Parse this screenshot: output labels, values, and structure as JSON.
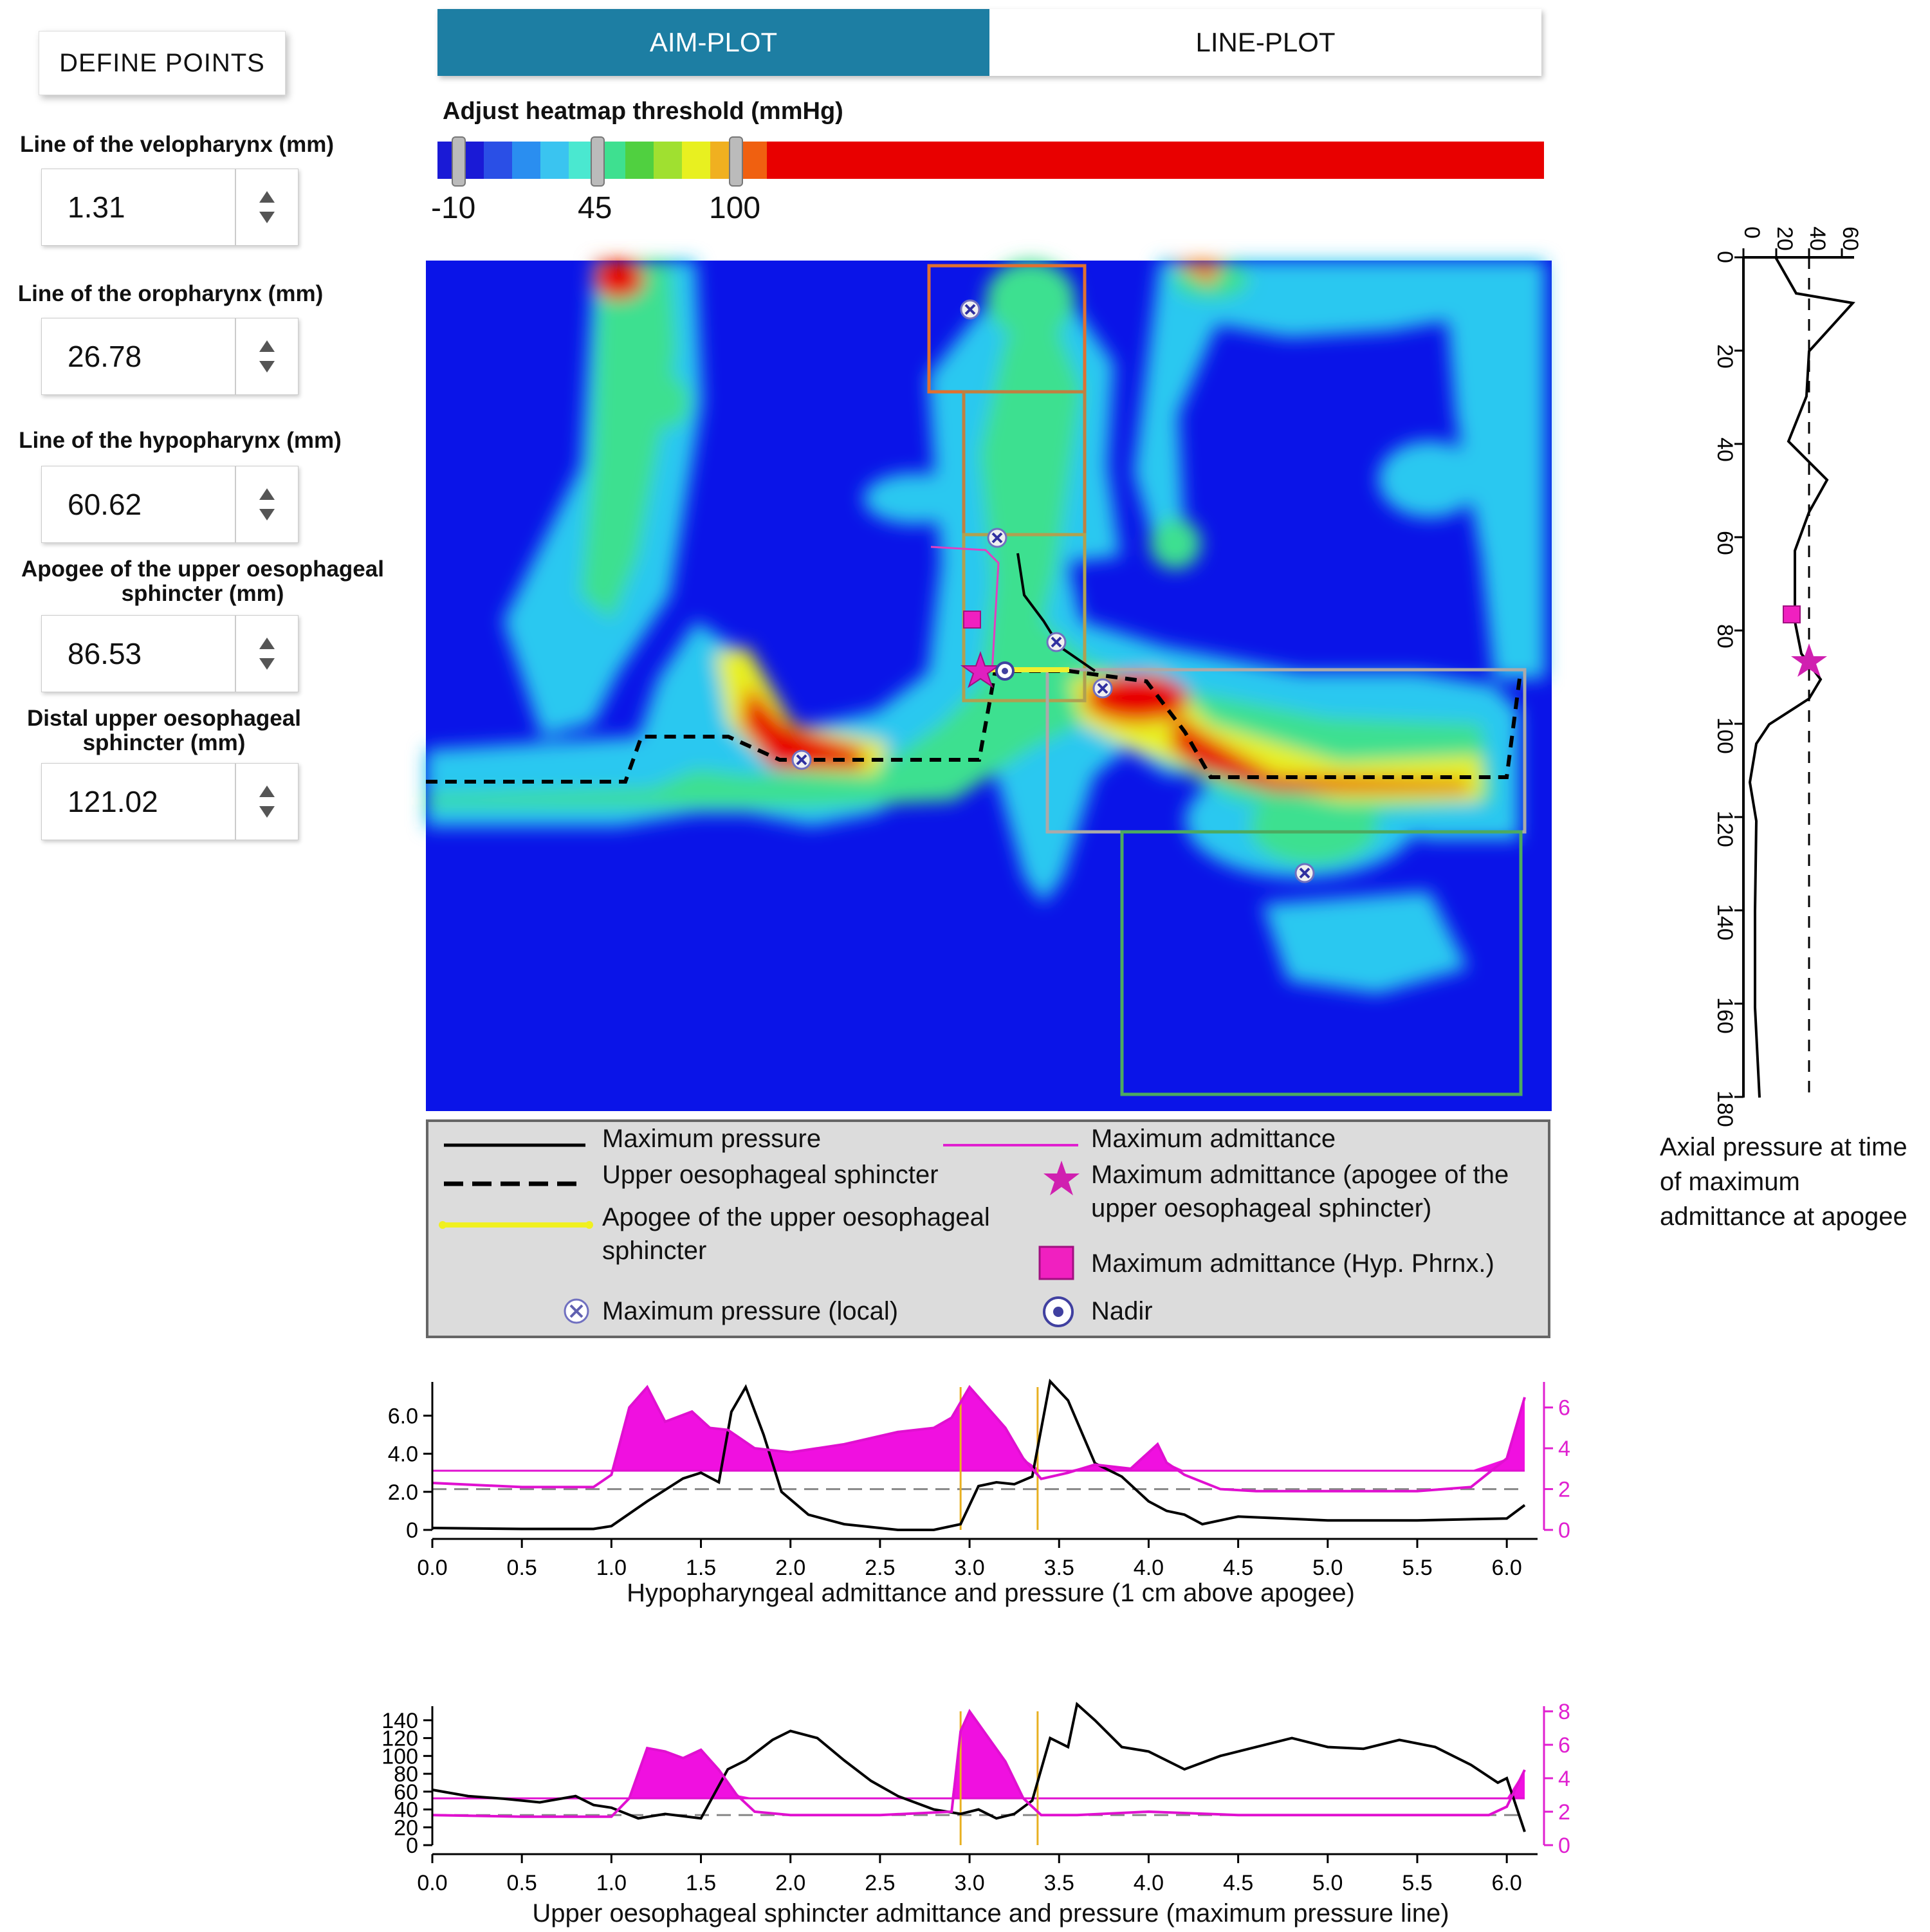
{
  "left_panel": {
    "define_points_label": "DEFINE POINTS",
    "fields": [
      {
        "label": "Line of the velopharynx (mm)",
        "value": "1.31"
      },
      {
        "label": "Line of the oropharynx (mm)",
        "value": "26.78"
      },
      {
        "label": "Line of the hypopharynx (mm)",
        "value": "60.62"
      },
      {
        "label": "Apogee of the upper oesophageal sphincter (mm)",
        "value": "86.53"
      },
      {
        "label": "Distal upper oesophageal sphincter (mm)",
        "value": "121.02"
      }
    ]
  },
  "tabs": [
    {
      "label": "AIM-PLOT",
      "active": true
    },
    {
      "label": "LINE-PLOT",
      "active": false
    }
  ],
  "threshold": {
    "title": "Adjust heatmap threshold (mmHg)",
    "ticks": [
      "-10",
      "45",
      "100"
    ],
    "colors": [
      "#1a1ad6",
      "#2a4fe6",
      "#2a8ef0",
      "#3ac4f0",
      "#4ae8d0",
      "#3ee090",
      "#50d040",
      "#a0e030",
      "#e8f020",
      "#f0b020",
      "#f06010",
      "#e80000"
    ]
  },
  "legend": {
    "items": [
      "Maximum pressure",
      "Upper oesophageal sphincter",
      "Apogee of the upper oesophageal sphincter",
      "Maximum pressure (local)",
      "Maximum admittance",
      "Maximum admittance (apogee of the upper oesophageal sphincter)",
      "Maximum admittance (Hyp. Phrnx.)",
      "Nadir"
    ]
  },
  "axial_plot": {
    "caption": "Axial pressure at time of maximum admittance at apogee",
    "x_ticks": [
      "0",
      "20",
      "40",
      "60"
    ],
    "y_ticks": [
      "0",
      "20",
      "40",
      "60",
      "80",
      "100",
      "120",
      "140",
      "160",
      "180"
    ]
  },
  "chart_data": [
    {
      "type": "line",
      "title": "Hypopharyngeal admittance and pressure (1 cm above apogee)",
      "x_ticks": [
        "0.0",
        "0.5",
        "1.0",
        "1.5",
        "2.0",
        "2.5",
        "3.0",
        "3.5",
        "4.0",
        "4.5",
        "5.0",
        "5.5",
        "6.0"
      ],
      "y_left_ticks": [
        "0",
        "2.0",
        "4.0",
        "6.0"
      ],
      "y_right_ticks": [
        "0",
        "2",
        "4",
        "6"
      ],
      "ylim_left": [
        0,
        7.5
      ],
      "ylim_right": [
        0,
        7
      ],
      "xlim": [
        0,
        6.1
      ],
      "series": [
        {
          "color": "#000000",
          "x": [
            0,
            0.5,
            0.9,
            1.0,
            1.2,
            1.4,
            1.5,
            1.6,
            1.67,
            1.75,
            1.85,
            1.95,
            2.1,
            2.3,
            2.6,
            2.8,
            2.95,
            3.05,
            3.15,
            3.25,
            3.35,
            3.45,
            3.55,
            3.7,
            3.85,
            4.0,
            4.1,
            4.2,
            4.3,
            4.5,
            5.0,
            5.5,
            6.0,
            6.1
          ],
          "y": [
            0.1,
            0.05,
            0.05,
            0.2,
            1.5,
            2.7,
            3.0,
            2.5,
            6.2,
            7.5,
            5.0,
            2.0,
            0.8,
            0.3,
            0.0,
            0.0,
            0.3,
            2.3,
            2.5,
            2.4,
            2.8,
            7.8,
            6.8,
            3.5,
            2.8,
            1.5,
            1.0,
            0.8,
            0.3,
            0.7,
            0.5,
            0.5,
            0.6,
            1.3
          ]
        },
        {
          "color": "#e010d0",
          "x": [
            0,
            0.5,
            0.9,
            1.0,
            1.1,
            1.2,
            1.3,
            1.45,
            1.55,
            1.65,
            1.8,
            2.0,
            2.3,
            2.6,
            2.8,
            2.9,
            3.0,
            3.1,
            3.2,
            3.3,
            3.4,
            3.55,
            3.7,
            3.9,
            4.05,
            4.1,
            4.2,
            4.4,
            4.6,
            5.0,
            5.5,
            5.8,
            6.0,
            6.1
          ],
          "y": [
            2.3,
            2.1,
            2.1,
            2.7,
            6.0,
            7.0,
            5.3,
            5.8,
            5.0,
            4.9,
            4.0,
            3.8,
            4.2,
            4.8,
            5.0,
            5.5,
            7.0,
            6.0,
            5.0,
            3.5,
            2.5,
            2.8,
            3.2,
            3.0,
            4.2,
            3.3,
            2.7,
            2.0,
            1.9,
            1.9,
            1.9,
            2.1,
            3.5,
            6.5
          ]
        }
      ],
      "thresholds": [
        {
          "axis": "right",
          "value": 2.9,
          "color": "#e010d0"
        },
        {
          "axis": "right",
          "value": 2.0,
          "color": "#888888",
          "dashed": true
        }
      ],
      "markers_x": [
        2.95,
        3.38
      ]
    },
    {
      "type": "line",
      "title": "Upper oesophageal sphincter admittance and pressure (maximum pressure line)",
      "x_ticks": [
        "0.0",
        "0.5",
        "1.0",
        "1.5",
        "2.0",
        "2.5",
        "3.0",
        "3.5",
        "4.0",
        "4.5",
        "5.0",
        "5.5",
        "6.0"
      ],
      "y_left_ticks": [
        "0",
        "20",
        "40",
        "60",
        "80",
        "100",
        "120",
        "140"
      ],
      "y_right_ticks": [
        "0",
        "2",
        "4",
        "6",
        "8"
      ],
      "ylim_left": [
        0,
        150
      ],
      "ylim_right": [
        0,
        8
      ],
      "xlim": [
        0,
        6.1
      ],
      "series": [
        {
          "color": "#000000",
          "x": [
            0,
            0.2,
            0.4,
            0.6,
            0.8,
            0.9,
            1.0,
            1.15,
            1.3,
            1.5,
            1.65,
            1.75,
            1.9,
            2.0,
            2.15,
            2.3,
            2.45,
            2.6,
            2.8,
            2.95,
            3.05,
            3.15,
            3.25,
            3.35,
            3.45,
            3.55,
            3.6,
            3.7,
            3.85,
            4.0,
            4.2,
            4.4,
            4.6,
            4.8,
            5.0,
            5.2,
            5.4,
            5.6,
            5.8,
            5.95,
            6.0,
            6.1
          ],
          "y": [
            62,
            55,
            52,
            48,
            55,
            45,
            42,
            30,
            35,
            30,
            85,
            95,
            118,
            128,
            120,
            95,
            72,
            55,
            40,
            35,
            40,
            30,
            35,
            50,
            120,
            110,
            158,
            140,
            110,
            105,
            85,
            100,
            110,
            120,
            110,
            108,
            118,
            110,
            90,
            70,
            75,
            15
          ]
        },
        {
          "color": "#e010d0",
          "x": [
            0,
            0.5,
            1.0,
            1.1,
            1.2,
            1.3,
            1.4,
            1.5,
            1.6,
            1.7,
            1.8,
            2.0,
            2.5,
            2.9,
            2.95,
            3.0,
            3.1,
            3.2,
            3.3,
            3.4,
            3.6,
            4.0,
            4.5,
            5.0,
            5.5,
            5.9,
            6.0,
            6.1
          ],
          "y": [
            1.8,
            1.7,
            1.7,
            2.8,
            5.8,
            5.6,
            5.2,
            5.7,
            4.5,
            3.0,
            2.0,
            1.8,
            1.8,
            2.0,
            6.8,
            8.0,
            6.5,
            5.0,
            2.8,
            1.8,
            1.8,
            2.0,
            1.8,
            1.8,
            1.8,
            1.8,
            2.3,
            4.5
          ]
        }
      ],
      "thresholds": [
        {
          "axis": "right",
          "value": 2.8,
          "color": "#e010d0"
        },
        {
          "axis": "right",
          "value": 1.8,
          "color": "#888888",
          "dashed": true
        }
      ],
      "markers_x": [
        2.95,
        3.38
      ]
    }
  ]
}
